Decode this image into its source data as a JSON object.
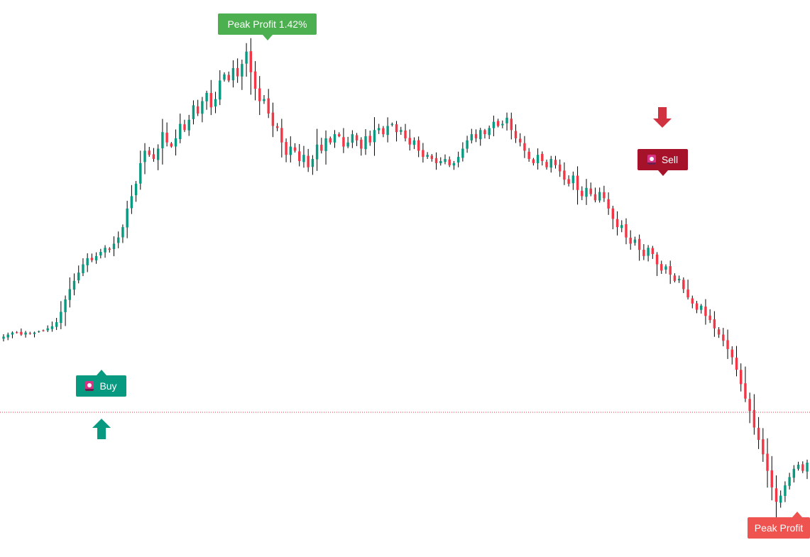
{
  "chart_data": {
    "type": "candlestick",
    "title": "",
    "xlabel": "",
    "ylabel": "",
    "grid": false,
    "colors": {
      "up": "#089981",
      "down": "#f23645",
      "wick": "#000000",
      "reference_line": "#f23645"
    },
    "reference_line": {
      "value": 100,
      "style": "dotted"
    },
    "ylim": [
      97.0,
      104.0
    ],
    "close_path": [
      101.2,
      101.25,
      101.3,
      101.3,
      101.25,
      101.3,
      101.28,
      101.3,
      101.33,
      101.35,
      101.4,
      101.45,
      101.55,
      101.8,
      102.1,
      102.35,
      102.55,
      102.75,
      102.95,
      103.1,
      103.05,
      103.15,
      103.25,
      103.35,
      103.3,
      103.45,
      103.6,
      103.85,
      104.3,
      104.6,
      104.9,
      105.4,
      105.7,
      105.6,
      105.5,
      105.75,
      106.15,
      105.9,
      105.8,
      106.0,
      106.35,
      106.2,
      106.45,
      106.8,
      106.6,
      106.9,
      107.1,
      106.75,
      106.95,
      107.4,
      107.55,
      107.4,
      107.7,
      107.5,
      107.8,
      108.1,
      107.6,
      107.2,
      106.9,
      106.95,
      106.6,
      106.3,
      106.25,
      105.9,
      105.6,
      105.8,
      105.7,
      105.45,
      105.6,
      105.3,
      105.5,
      105.85,
      105.7,
      106.0,
      105.9,
      106.1,
      106.05,
      105.8,
      105.9,
      106.1,
      105.95,
      105.75,
      106.05,
      105.9,
      106.2,
      106.25,
      106.1,
      106.3,
      106.35,
      106.15,
      106.2,
      106.0,
      105.85,
      105.95,
      105.7,
      105.55,
      105.6,
      105.5,
      105.4,
      105.45,
      105.5,
      105.35,
      105.4,
      105.55,
      105.75,
      105.95,
      106.1,
      106.0,
      106.2,
      106.1,
      106.25,
      106.4,
      106.3,
      106.35,
      106.5,
      106.2,
      106.0,
      105.9,
      105.7,
      105.5,
      105.4,
      105.6,
      105.45,
      105.3,
      105.5,
      105.35,
      105.2,
      105.0,
      104.9,
      105.1,
      104.75,
      104.6,
      104.8,
      104.65,
      104.5,
      104.7,
      104.55,
      104.3,
      104.05,
      103.85,
      103.9,
      103.6,
      103.45,
      103.55,
      103.3,
      103.15,
      103.35,
      103.2,
      102.95,
      102.8,
      102.9,
      102.7,
      102.55,
      102.6,
      102.35,
      102.15,
      102.0,
      101.85,
      101.95,
      101.7,
      101.6,
      101.4,
      101.25,
      101.1,
      100.9,
      100.7,
      100.4,
      100.05,
      99.7,
      99.4,
      99.0,
      98.7,
      98.35,
      97.95,
      97.55,
      97.2,
      97.35,
      97.6,
      97.8,
      98.0,
      98.1,
      97.95,
      98.15
    ],
    "markers": [
      {
        "type": "buy",
        "label": "Buy",
        "color": "#089981",
        "arrow": "up"
      },
      {
        "type": "sell",
        "label": "Sell",
        "color": "#a6122a",
        "arrow": "down",
        "arrow_color": "#d1323f"
      },
      {
        "type": "peak",
        "label": "Peak Profit 1.42%",
        "color": "#4caf50"
      },
      {
        "type": "peak",
        "label": "Peak Profit",
        "color": "#ef5350"
      }
    ]
  }
}
